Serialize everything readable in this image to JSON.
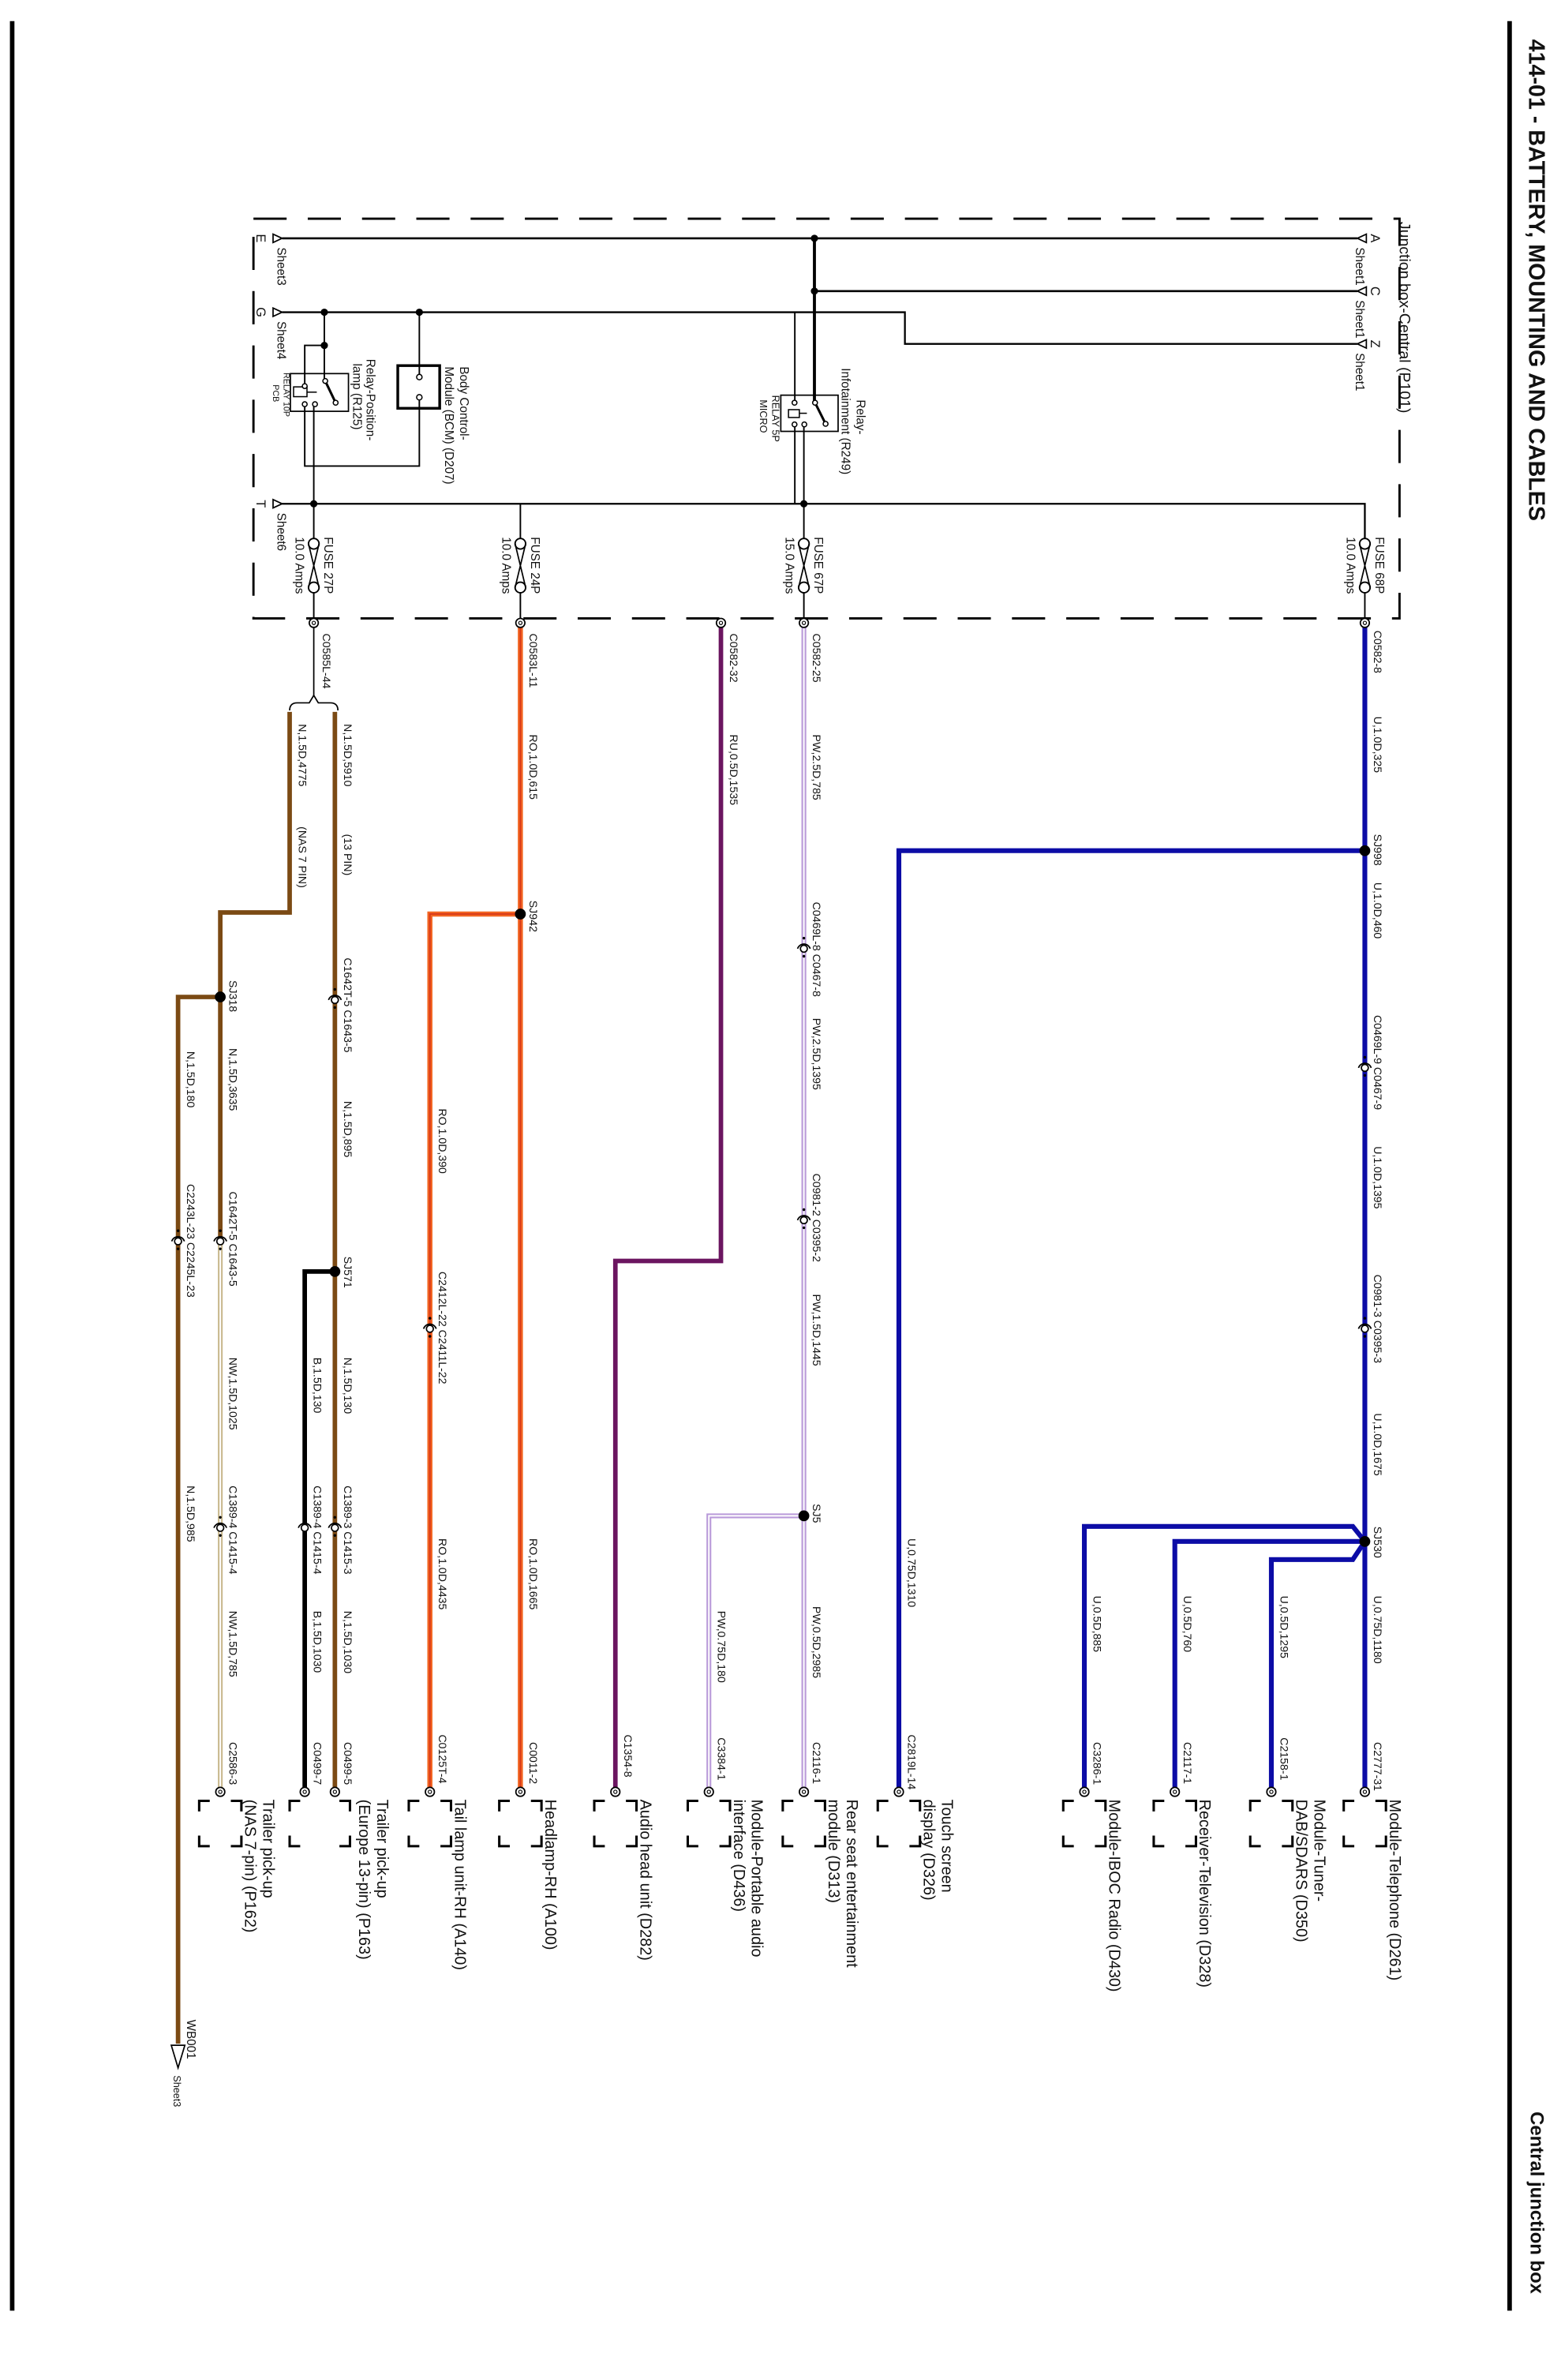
{
  "header": {
    "title": "414-01 - BATTERY, MOUNTING AND CABLES",
    "section": "Central junction box"
  },
  "wire_colors": {
    "U": "#0c0ca6",
    "PW": "#b99ad9",
    "RU": "#6b1560",
    "RO": "#f26522",
    "N": "#7b4a14",
    "NW": "#c9b98f",
    "B": "#000000"
  },
  "junction_box": {
    "title": "Junction box-Central (P101)",
    "terminals": [
      {
        "id": "A",
        "sheet": "Sheet1"
      },
      {
        "id": "C",
        "sheet": "Sheet1"
      },
      {
        "id": "Z",
        "sheet": "Sheet1"
      },
      {
        "id": "E",
        "sheet": "Sheet3"
      },
      {
        "id": "G",
        "sheet": "Sheet4"
      },
      {
        "id": "T",
        "sheet": "Sheet6"
      }
    ],
    "fuses": [
      {
        "name": "FUSE 68P",
        "rating": "10.0 Amps"
      },
      {
        "name": "FUSE 67P",
        "rating": "15.0 Amps"
      },
      {
        "name": "FUSE 24P",
        "rating": "10.0 Amps"
      },
      {
        "name": "FUSE 27P",
        "rating": "10.0 Amps"
      }
    ],
    "relays": [
      {
        "name_lines": [
          "Relay-",
          "Infotainment (R249)"
        ],
        "type_lines": [
          "RELAY 5P",
          "MICRO"
        ]
      },
      {
        "name_lines": [
          "Relay-Position-",
          "lamp (R125)"
        ],
        "type_lines": [
          "RELAY 10P",
          "PCB"
        ]
      }
    ],
    "bcm": {
      "name_lines": [
        "Body Control-",
        "Module (BCM) (D207)"
      ]
    }
  },
  "wires": {
    "telephone": [
      "C0582-8",
      "U,1.0D,325",
      "SJ998",
      "U,1.0D,460",
      "C0469L-9 C0467-9",
      "U,1.0D,1395",
      "C0981-3 C0395-3",
      "U,1.0D,1675",
      "SJ530",
      "U,0.75D,1180",
      "C2777-31"
    ],
    "tuner": [
      "U,0.5D,1295",
      "C2158-1"
    ],
    "television": [
      "U,0.5D,760",
      "C2117-1"
    ],
    "iboc": [
      "U,0.5D,885",
      "C3286-1"
    ],
    "touch_screen": [
      "U,0.75D,1310",
      "C2819L-14"
    ],
    "rear_seat": [
      "C0582-25",
      "PW,2.5D,785",
      "C0469L-8 C0467-8",
      "PW,2.5D,1395",
      "C0981-2 C0395-2",
      "PW,1.5D,1445",
      "SJ5",
      "PW,0.5D,2985",
      "C2116-1"
    ],
    "portable_audio": [
      "PW,0.75D,180",
      "C3384-1"
    ],
    "audio_head": [
      "C0582-32",
      "RU,0.5D,1535",
      "C1354-8"
    ],
    "headlamp": [
      "C0583L-11",
      "RO,1.0D,615",
      "SJ942",
      "RO,1.0D,1665",
      "C0011-2"
    ],
    "tail_lamp": [
      "RO,1.0D,390",
      "C2412L-22 C2411L-22",
      "RO,1.0D,4435",
      "C0125T-4"
    ],
    "trailer_13": [
      "C0585L-44",
      "N,1.5D,5910",
      "(13 PIN)",
      "C1642T-5 C1643-5",
      "N,1.5D,895",
      "SJ571",
      "N,1.5D,130",
      "C1389-3 C1415-3",
      "N,1.5D,1030",
      "C0499-5"
    ],
    "trailer_13_ground": [
      "B,1.5D,130",
      "C1389-4 C1415-4",
      "B,1.5D,1030",
      "C0499-7"
    ],
    "trailer_7": [
      "N,1.5D,4775",
      "(NAS 7 PIN)",
      "SJ318",
      "N,1.5D,3635",
      "C1642T-5 C1643-5",
      "NW,1.5D,1025",
      "C1389-4 C1415-4",
      "NW,1.5D,785",
      "C2586-3"
    ],
    "ground": [
      "N,1.5D,180",
      "C2243L-23 C2245L-23",
      "N,1.5D,985"
    ]
  },
  "ground_point": {
    "id": "WB001",
    "sheet": "Sheet3"
  },
  "components": [
    {
      "lines": [
        "Module-Telephone (D261)"
      ]
    },
    {
      "lines": [
        "Module-Tuner-",
        "DAB/SDARS (D350)"
      ]
    },
    {
      "lines": [
        "Receiver-Television (D328)"
      ]
    },
    {
      "lines": [
        "Module-IBOC Radio (D430)"
      ]
    },
    {
      "lines": [
        "Touch screen",
        "display (D326)"
      ]
    },
    {
      "lines": [
        "Rear seat entertainment",
        "module (D313)"
      ]
    },
    {
      "lines": [
        "Module-Portable audio",
        "interface (D436)"
      ]
    },
    {
      "lines": [
        "Audio head unit (D282)"
      ]
    },
    {
      "lines": [
        "Headlamp-RH (A100)"
      ]
    },
    {
      "lines": [
        "Tail lamp unit-RH (A140)"
      ]
    },
    {
      "lines": [
        "Trailer pick-up",
        "(Europe 13-pin) (P163)"
      ]
    },
    {
      "lines": [
        "Trailer pick-up",
        "(NAS 7-pin) (P162)"
      ]
    }
  ]
}
